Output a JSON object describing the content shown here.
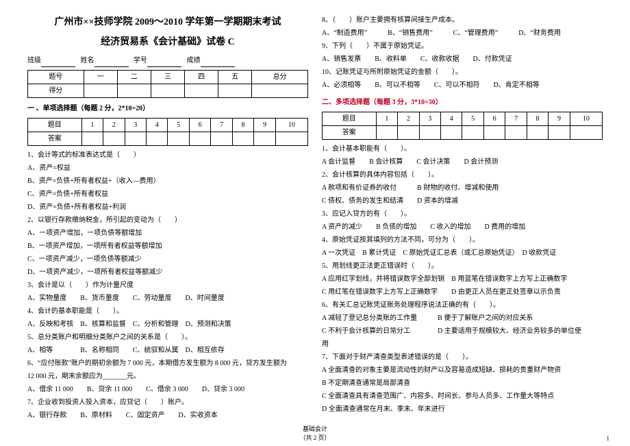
{
  "header": {
    "title1": "广州市××技师学院 2009～2010 学年第一学期期末考试",
    "title2": "经济贸易系《会计基础》试卷 C",
    "labels": {
      "class": "班级",
      "name": "姓名",
      "no": "学号",
      "score": "成绩"
    }
  },
  "scoreTable": {
    "row1": [
      "题号",
      "一",
      "二",
      "三",
      "四",
      "五",
      "总分"
    ],
    "row2": [
      "得分",
      "",
      "",
      "",
      "",
      "",
      ""
    ]
  },
  "sec1": {
    "title": "一 、单项选择题（每题 2 分，2*10=20）",
    "ansRow1": [
      "题目",
      "1",
      "2",
      "3",
      "4",
      "5",
      "6",
      "7",
      "8",
      "9",
      "10"
    ],
    "ansRow2": [
      "答案",
      "",
      "",
      "",
      "",
      "",
      "",
      "",
      "",
      "",
      ""
    ]
  },
  "sec2": {
    "title": "二、多项选择题（每题 3 分，3*10=30）",
    "ansRow1": [
      "题目",
      "1",
      "2",
      "3",
      "4",
      "5",
      "6",
      "7",
      "8",
      "9",
      "10"
    ],
    "ansRow2": [
      "答案",
      "",
      "",
      "",
      "",
      "",
      "",
      "",
      "",
      "",
      ""
    ]
  },
  "left": {
    "q1": "1、会计等式的标准表达式是（　　）",
    "q1a": "A、资产=权益",
    "q1b": "B、资产=负债+所有者权益+（收入—费用）",
    "q1c": "C、资产=负债+所有者权益",
    "q1d": "D、资产=负债+所有者权益+利润",
    "q2": "2、以银行存款缴纳税金，所引起的变动为（　　）",
    "q2a": "A、一项资产增加，一项负债等额增加",
    "q2b": "B、一项资产增加，一项所有者权益等额增加",
    "q2c": "C、一项资产减少，一项负债等额减少",
    "q2d": "D、一项资产减少，一项所有者权益等额减少",
    "q3": "3、会计是以（　　）作为计量尺度",
    "q3o": "A、实物量度　　B、货币量度　　C、劳动量度　　D、时间量度",
    "q4": "4、会计的基本职能是（　　）。",
    "q4o": "A、反映和考核　B、核算和监督　C、分析和管理　D、预测和决策",
    "q5": "5、总分类账户和明细分类账户之间的关系是（　　）。",
    "q5o": "A、相等　　　　B、名称相同　　C、统驭和从属　D、相互依存",
    "q6": "6、“应付账款”账户的期初余额为 7 000 元，本期借方发生额为 8 000 元，贷方发生额为",
    "q6b": "12 000 元，期末余额应为_______元。",
    "q6o": "A、借余 11 000　　B、贷余 11 000　　C、借余 3 000　　D、贷余 3 000",
    "q7": "7、企业收到投资人投入资本，应贷记（　　）账户。",
    "q7o": "A、银行存款　　B、原材料　　C、固定资产　　D、实收资本"
  },
  "right": {
    "q8": "8、（　　）账户主要拥有核算间接生产成本。",
    "q8o": "A、“制造费用”　　　B、“销售费用”　　　C、“管理费用”　　　D、“财务费用",
    "q9": "9、下列（　　）不属于原始凭证。",
    "q9o": "A、销售发票　　B、收料单　　C、收款收据　　D、付款凭证",
    "q10": "10、记账凭证与所附原始凭证的金额（　　）。",
    "q10o": "A、必须相等　　B、可以不相等　　C、可以不相符　　D、肯定不相等",
    "m1": "1、会计基本职能有（　　）。",
    "m1o": "A 会计监督　　B 会计核算　　C 会计决策　　D 会计预测",
    "m2": "2、会计核算的具体内容包括（　　）。",
    "m2a": "A 款项和有价证券的收付　　　B 财物的收付、增减和使用",
    "m2b": "C 债权、债务的发生和结清　　D 资本的增减",
    "m3": "3、应记入贷方的有（　　）。",
    "m3o": "A 资产的减少　　B 负债的增加　　C 收入的增加　　D 费用的增加",
    "m4": "4、原始凭证按其填列的方法不同，可分为（　　）。",
    "m4o": "A 一次凭证　B 累计凭证　C 原始凭证汇总表（或汇总原始凭证）　D 收款凭证",
    "m5": "5、用划线更正法更正错误时（　　）。",
    "m5a": "A 应用红字划线，并将错误数字全部划销　B 用蓝笔在错误数字上方写上正确数字",
    "m5b": "C 用红笔在错误数字上方写上正确数字　　D 由更正人员在更正处签章以示负责",
    "m6": "6、有关汇总记账凭证账务处理程序说法正确的有（　　）。",
    "m6a": "A 减轻了登记总分类账的工作量　　　B 便于了解账户之间的对应关系",
    "m6b": "C 不利于会计核算的日常分工　　　　D 主要适用于规模较大、经济业务较多的单位使",
    "m6c": "用",
    "m7": "7、下面对于财产清查类型表述错误的是（　　）。",
    "m7a": "A 全面清查的对象主要是流动性的财产以及容易造成短缺、损耗的贵重财产物资",
    "m7b": "B 不定期清查通常是局部清查",
    "m7c": "C 全面清查具有清查范围广、内容多、时间长、参与人员多、工作量大等特点",
    "m7d": "D 全面清查通常在月末、季末、年末进行"
  },
  "footer": {
    "center": "基础会计",
    "center2": "（共 2 页）",
    "page": "1"
  }
}
